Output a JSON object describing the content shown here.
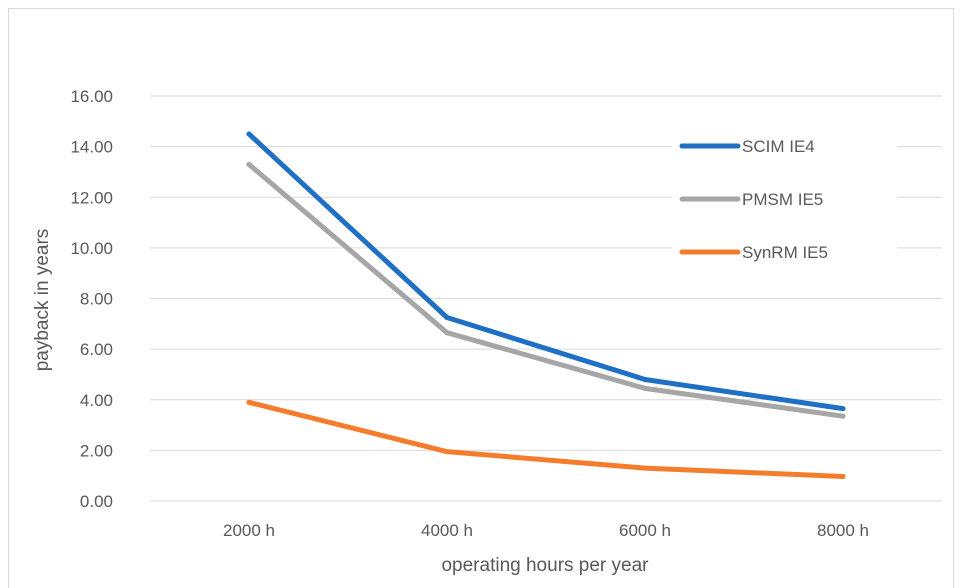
{
  "chart_data": {
    "type": "line",
    "title": "",
    "xlabel": "operating hours per year",
    "ylabel": "payback in years",
    "categories": [
      "2000 h",
      "4000 h",
      "6000 h",
      "8000 h"
    ],
    "y_ticks": [
      "0.00",
      "2.00",
      "4.00",
      "6.00",
      "8.00",
      "10.00",
      "12.00",
      "14.00",
      "16.00"
    ],
    "ylim": [
      0,
      16
    ],
    "grid": "horizontal",
    "legend_position": "top-right, inside plot",
    "series": [
      {
        "name": "SCIM IE4",
        "color": "#1f6fc5",
        "values": [
          14.5,
          7.25,
          4.8,
          3.65
        ]
      },
      {
        "name": "PMSM IE5",
        "color": "#a6a6a6",
        "values": [
          13.3,
          6.65,
          4.45,
          3.35
        ]
      },
      {
        "name": "SynRM IE5",
        "color": "#f47c2b",
        "values": [
          3.9,
          1.95,
          1.3,
          0.97
        ]
      }
    ]
  }
}
